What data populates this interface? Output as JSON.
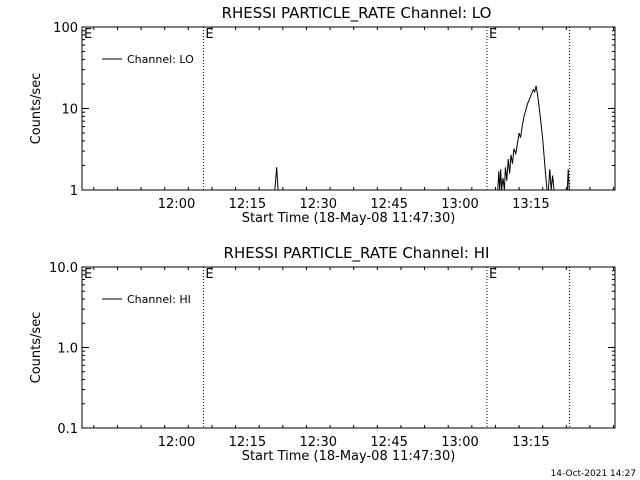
{
  "footer": {
    "timestamp": "14-Oct-2021 14:27"
  },
  "chart_data": [
    {
      "type": "line",
      "title": "RHESSI PARTICLE_RATE Channel: LO",
      "xlabel": "Start Time (18-May-08 11:47:30)",
      "ylabel": "Counts/sec",
      "yscale": "log",
      "ylim": [
        1,
        100
      ],
      "xlim_min": [
        -7.5,
        77.5
      ],
      "xticks": [
        {
          "t": 12.5,
          "label": "12:00"
        },
        {
          "t": 27.5,
          "label": "12:15"
        },
        {
          "t": 42.5,
          "label": "12:30"
        },
        {
          "t": 57.5,
          "label": "12:45"
        },
        {
          "t": 72.5,
          "label": "13:00"
        },
        {
          "t": 87.5,
          "label": "13:15"
        }
      ],
      "yticks": [
        {
          "v": 1,
          "label": "1"
        },
        {
          "v": 10,
          "label": "10"
        },
        {
          "v": 100,
          "label": "100"
        }
      ],
      "vlines": [
        {
          "t": 18.2,
          "label": "E"
        },
        {
          "t": 78.2,
          "label": "E"
        },
        {
          "t": 95.7,
          "label": ""
        }
      ],
      "corner_label": "E",
      "legend": {
        "entry": "Channel: LO",
        "placement": "top-left"
      },
      "series": [
        {
          "name": "Channel: LO",
          "segments": [
            [
              [
                33.3,
                1
              ],
              [
                33.7,
                1.9
              ],
              [
                34.0,
                1
              ]
            ],
            [
              [
                80.5,
                1
              ],
              [
                80.7,
                1.7
              ],
              [
                80.9,
                1
              ],
              [
                81.1,
                1.8
              ],
              [
                81.3,
                1
              ],
              [
                81.6,
                1.4
              ],
              [
                81.9,
                1.0
              ],
              [
                82.1,
                1.9
              ],
              [
                82.4,
                1.3
              ],
              [
                82.7,
                2.4
              ],
              [
                83.0,
                1.6
              ],
              [
                83.3,
                2.7
              ],
              [
                83.6,
                2.1
              ],
              [
                83.9,
                3.2
              ],
              [
                84.3,
                2.8
              ],
              [
                84.6,
                3.6
              ],
              [
                85.0,
                5.0
              ],
              [
                85.3,
                4.4
              ],
              [
                85.7,
                6.2
              ],
              [
                86.0,
                7.8
              ],
              [
                86.4,
                9.5
              ],
              [
                86.8,
                11.5
              ],
              [
                87.2,
                13.0
              ],
              [
                87.6,
                15.0
              ],
              [
                88.0,
                17.0
              ],
              [
                88.3,
                16.0
              ],
              [
                88.6,
                19.0
              ],
              [
                88.9,
                15.0
              ],
              [
                89.2,
                11.0
              ],
              [
                89.6,
                7.0
              ],
              [
                90.0,
                4.2
              ],
              [
                90.3,
                2.6
              ],
              [
                90.6,
                1.6
              ],
              [
                90.9,
                1.0
              ]
            ],
            [
              [
                91.2,
                1
              ],
              [
                91.5,
                1.8
              ],
              [
                91.8,
                1
              ],
              [
                92.1,
                1.5
              ],
              [
                92.4,
                1
              ]
            ],
            [
              [
                95.2,
                1
              ],
              [
                95.4,
                1.8
              ],
              [
                95.6,
                1
              ]
            ]
          ]
        }
      ]
    },
    {
      "type": "line",
      "title": "RHESSI PARTICLE_RATE Channel: HI",
      "xlabel": "Start Time (18-May-08 11:47:30)",
      "ylabel": "Counts/sec",
      "yscale": "log",
      "ylim": [
        0.1,
        10.0
      ],
      "xticks": [
        {
          "t": 12.5,
          "label": "12:00"
        },
        {
          "t": 27.5,
          "label": "12:15"
        },
        {
          "t": 42.5,
          "label": "12:30"
        },
        {
          "t": 57.5,
          "label": "12:45"
        },
        {
          "t": 72.5,
          "label": "13:00"
        },
        {
          "t": 87.5,
          "label": "13:15"
        }
      ],
      "yticks": [
        {
          "v": 0.1,
          "label": "0.1"
        },
        {
          "v": 1.0,
          "label": "1.0"
        },
        {
          "v": 10.0,
          "label": "10.0"
        }
      ],
      "vlines": [
        {
          "t": 18.2,
          "label": "E"
        },
        {
          "t": 78.2,
          "label": "E"
        },
        {
          "t": 95.7,
          "label": ""
        }
      ],
      "corner_label": "E",
      "legend": {
        "entry": "Channel: HI",
        "placement": "top-left"
      },
      "series": [
        {
          "name": "Channel: HI",
          "segments": []
        }
      ]
    }
  ]
}
